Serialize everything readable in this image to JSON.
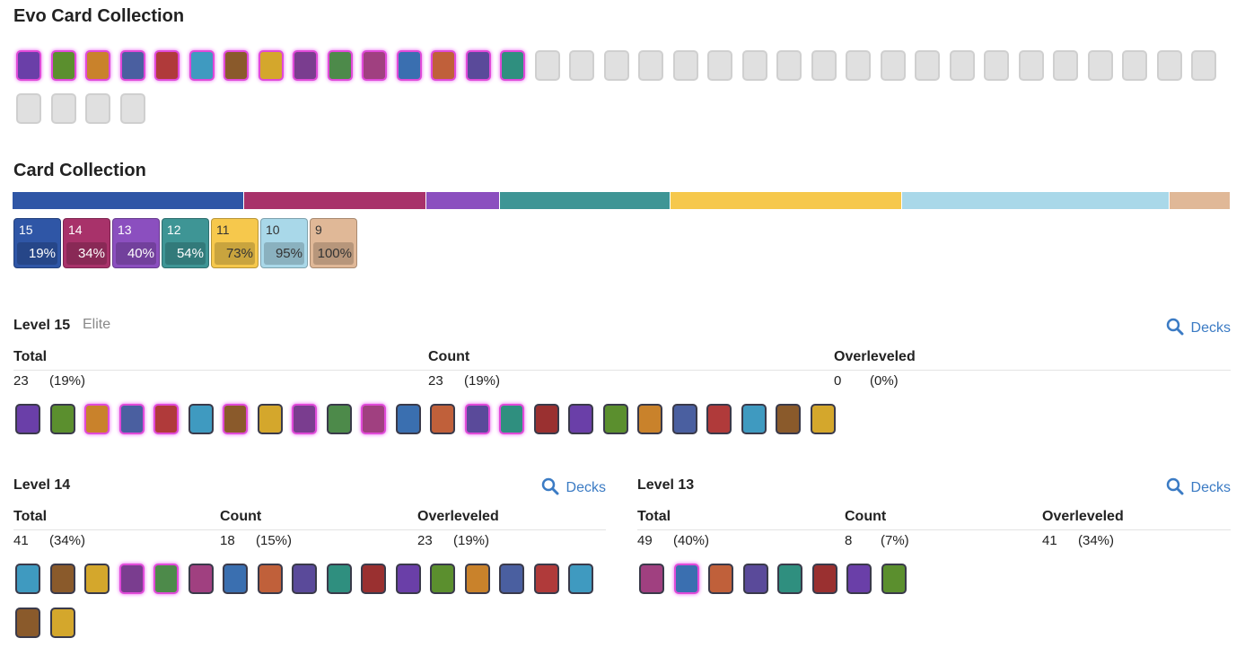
{
  "evo_section": {
    "title": "Evo Card Collection"
  },
  "collection": {
    "title": "Card Collection",
    "levels": [
      {
        "level": "15",
        "percent": "19%",
        "color": "#2f56a6"
      },
      {
        "level": "14",
        "percent": "34%",
        "color": "#a8326a"
      },
      {
        "level": "13",
        "percent": "40%",
        "color": "#8b4fbf"
      },
      {
        "level": "12",
        "percent": "54%",
        "color": "#3e9595"
      },
      {
        "level": "11",
        "percent": "73%",
        "color": "#f6c84c"
      },
      {
        "level": "10",
        "percent": "95%",
        "color": "#a9d8e9"
      },
      {
        "level": "9",
        "percent": "100%",
        "color": "#e0b897"
      }
    ]
  },
  "level_sections": [
    {
      "title": "Level 15",
      "tag": "Elite",
      "decks": "Decks",
      "columns": [
        {
          "label": "Total",
          "count": "23",
          "percent": "(19%)"
        },
        {
          "label": "Count",
          "count": "23",
          "percent": "(19%)"
        },
        {
          "label": "Overleveled",
          "count": "0",
          "percent": "(0%)"
        }
      ]
    },
    {
      "title": "Level 14",
      "decks": "Decks",
      "columns": [
        {
          "label": "Total",
          "count": "41",
          "percent": "(34%)"
        },
        {
          "label": "Count",
          "count": "18",
          "percent": "(15%)"
        },
        {
          "label": "Overleveled",
          "count": "23",
          "percent": "(19%)"
        }
      ]
    },
    {
      "title": "Level 13",
      "decks": "Decks",
      "columns": [
        {
          "label": "Total",
          "count": "49",
          "percent": "(40%)"
        },
        {
          "label": "Count",
          "count": "8",
          "percent": "(7%)"
        },
        {
          "label": "Overleveled",
          "count": "41",
          "percent": "(34%)"
        }
      ]
    }
  ]
}
